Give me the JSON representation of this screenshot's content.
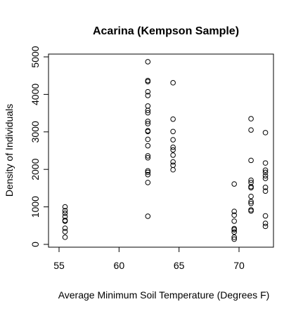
{
  "chart_data": {
    "type": "scatter",
    "title": "Acarina (Kempson Sample)",
    "xlabel": "Average Minimum Soil Temperature (Degrees F)",
    "ylabel": "Density of Individuals",
    "xlim": [
      55,
      72.5
    ],
    "ylim": [
      0,
      5000
    ],
    "x_ticks": [
      55,
      60,
      65,
      70
    ],
    "y_ticks": [
      0,
      1000,
      2000,
      3000,
      4000,
      5000
    ],
    "grid": false,
    "points": [
      {
        "x": 55.5,
        "y": 1000
      },
      {
        "x": 55.5,
        "y": 900
      },
      {
        "x": 55.5,
        "y": 830
      },
      {
        "x": 55.5,
        "y": 740
      },
      {
        "x": 55.5,
        "y": 640
      },
      {
        "x": 55.5,
        "y": 620
      },
      {
        "x": 55.5,
        "y": 430
      },
      {
        "x": 55.5,
        "y": 340
      },
      {
        "x": 55.5,
        "y": 190
      },
      {
        "x": 62.4,
        "y": 4870
      },
      {
        "x": 62.4,
        "y": 4370
      },
      {
        "x": 62.4,
        "y": 4340
      },
      {
        "x": 62.4,
        "y": 4070
      },
      {
        "x": 62.4,
        "y": 3970
      },
      {
        "x": 62.4,
        "y": 3690
      },
      {
        "x": 62.4,
        "y": 3570
      },
      {
        "x": 62.4,
        "y": 3510
      },
      {
        "x": 62.4,
        "y": 3280
      },
      {
        "x": 62.4,
        "y": 3220
      },
      {
        "x": 62.4,
        "y": 3030
      },
      {
        "x": 62.4,
        "y": 3010
      },
      {
        "x": 62.4,
        "y": 2800
      },
      {
        "x": 62.4,
        "y": 2630
      },
      {
        "x": 62.4,
        "y": 2360
      },
      {
        "x": 62.4,
        "y": 2310
      },
      {
        "x": 62.4,
        "y": 1960
      },
      {
        "x": 62.4,
        "y": 1920
      },
      {
        "x": 62.4,
        "y": 1860
      },
      {
        "x": 62.4,
        "y": 1650
      },
      {
        "x": 62.4,
        "y": 750
      },
      {
        "x": 64.5,
        "y": 4310
      },
      {
        "x": 64.5,
        "y": 3340
      },
      {
        "x": 64.5,
        "y": 3010
      },
      {
        "x": 64.5,
        "y": 2790
      },
      {
        "x": 64.5,
        "y": 2590
      },
      {
        "x": 64.5,
        "y": 2520
      },
      {
        "x": 64.5,
        "y": 2380
      },
      {
        "x": 64.5,
        "y": 2200
      },
      {
        "x": 64.5,
        "y": 2110
      },
      {
        "x": 64.5,
        "y": 1990
      },
      {
        "x": 69.6,
        "y": 1610
      },
      {
        "x": 69.6,
        "y": 880
      },
      {
        "x": 69.6,
        "y": 780
      },
      {
        "x": 69.6,
        "y": 620
      },
      {
        "x": 69.6,
        "y": 420
      },
      {
        "x": 69.6,
        "y": 390
      },
      {
        "x": 69.6,
        "y": 330
      },
      {
        "x": 69.6,
        "y": 190
      },
      {
        "x": 69.6,
        "y": 140
      },
      {
        "x": 71.0,
        "y": 3350
      },
      {
        "x": 71.0,
        "y": 3050
      },
      {
        "x": 71.0,
        "y": 2240
      },
      {
        "x": 71.0,
        "y": 1710
      },
      {
        "x": 71.0,
        "y": 1650
      },
      {
        "x": 71.0,
        "y": 1540
      },
      {
        "x": 71.0,
        "y": 1510
      },
      {
        "x": 71.0,
        "y": 1280
      },
      {
        "x": 71.0,
        "y": 1140
      },
      {
        "x": 71.0,
        "y": 1090
      },
      {
        "x": 71.0,
        "y": 920
      },
      {
        "x": 71.0,
        "y": 890
      },
      {
        "x": 72.2,
        "y": 2980
      },
      {
        "x": 72.2,
        "y": 2170
      },
      {
        "x": 72.2,
        "y": 1980
      },
      {
        "x": 72.2,
        "y": 1920
      },
      {
        "x": 72.2,
        "y": 1830
      },
      {
        "x": 72.2,
        "y": 1760
      },
      {
        "x": 72.2,
        "y": 1520
      },
      {
        "x": 72.2,
        "y": 1420
      },
      {
        "x": 72.2,
        "y": 760
      },
      {
        "x": 72.2,
        "y": 560
      },
      {
        "x": 72.2,
        "y": 480
      }
    ]
  }
}
